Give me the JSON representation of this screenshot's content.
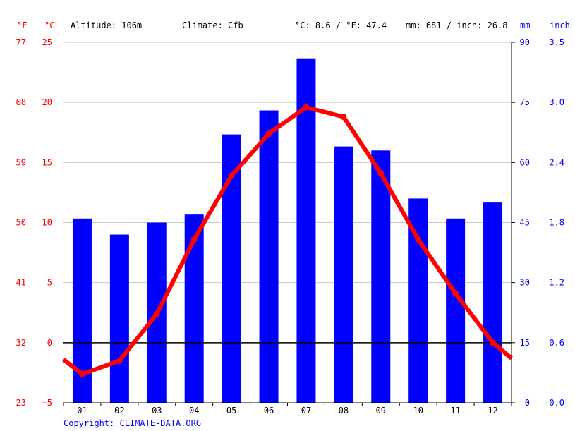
{
  "header": {
    "unit_f": "°F",
    "unit_c": "°C",
    "altitude": "Altitude: 106m",
    "climate": "Climate: Cfb",
    "temp_avg": "°C: 8.6 / °F: 47.4",
    "precip_avg": "mm: 681 / inch: 26.8",
    "unit_mm": "mm",
    "unit_inch": "inch"
  },
  "axes": {
    "fahrenheit_ticks": [
      "77",
      "68",
      "59",
      "50",
      "41",
      "32",
      "23"
    ],
    "celsius_ticks": [
      "25",
      "20",
      "15",
      "10",
      "5",
      "0",
      "−5"
    ],
    "mm_ticks": [
      "90",
      "75",
      "60",
      "45",
      "30",
      "15",
      "0"
    ],
    "inch_ticks": [
      "3.5",
      "3.0",
      "2.4",
      "1.8",
      "1.2",
      "0.6",
      "0.0"
    ]
  },
  "copyright": "Copyright: CLIMATE-DATA.ORG",
  "colors": {
    "temperature": "#ff0000",
    "precipitation": "#0000ff",
    "grid": "#c8c8c8",
    "zero_line": "#000000"
  },
  "chart_data": {
    "type": "bar",
    "title": "",
    "categories": [
      "01",
      "02",
      "03",
      "04",
      "05",
      "06",
      "07",
      "08",
      "09",
      "10",
      "11",
      "12"
    ],
    "series": [
      {
        "name": "Precipitation (mm)",
        "type": "bar",
        "axis": "right",
        "values": [
          46,
          42,
          45,
          47,
          67,
          73,
          86,
          64,
          63,
          51,
          46,
          50
        ]
      },
      {
        "name": "Temperature (°C)",
        "type": "line",
        "axis": "left",
        "values": [
          -2.6,
          -1.5,
          2.4,
          8.6,
          13.9,
          17.4,
          19.6,
          18.8,
          14.1,
          8.6,
          4.1,
          0.0
        ],
        "edge_values": {
          "start": -1.4,
          "end": -1.3
        }
      }
    ],
    "ylim_left": [
      -5,
      25
    ],
    "ylim_right": [
      0,
      90
    ],
    "ylabel_left": "°C",
    "ylabel_right": "mm",
    "xlabel": ""
  }
}
